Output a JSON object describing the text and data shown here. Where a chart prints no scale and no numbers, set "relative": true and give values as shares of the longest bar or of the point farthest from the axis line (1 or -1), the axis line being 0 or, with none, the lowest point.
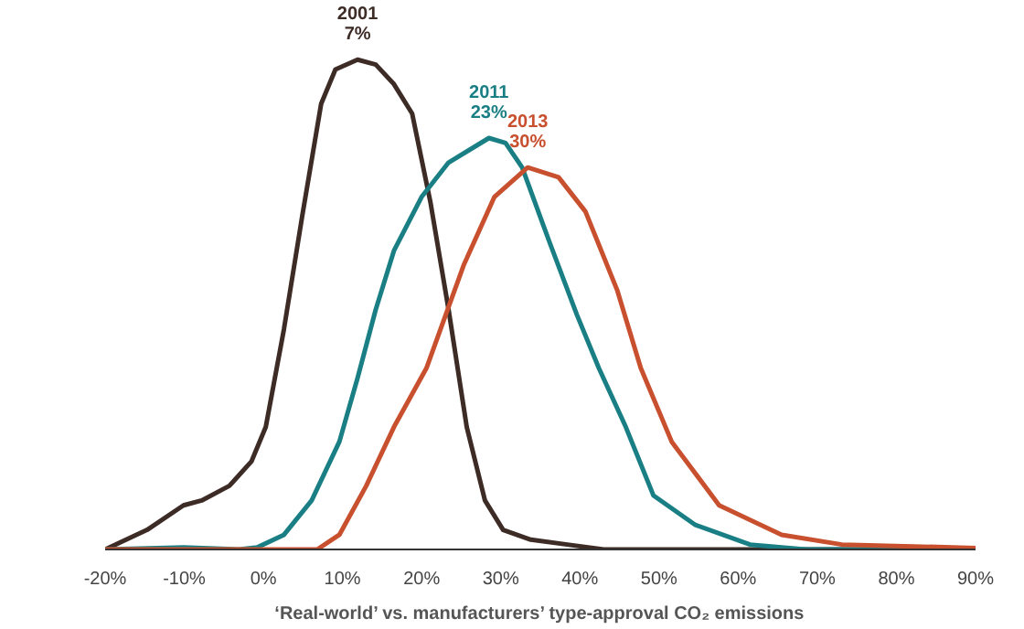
{
  "chart_data": {
    "type": "line",
    "relative": true,
    "xlabel": "‘Real-world’ vs. manufacturers’ type-approval CO₂ emissions",
    "xlim": [
      -20,
      90
    ],
    "xticks": [
      {
        "value": -20,
        "label": "-20%"
      },
      {
        "value": -10,
        "label": "-10%"
      },
      {
        "value": 0,
        "label": "0%"
      },
      {
        "value": 10,
        "label": "10%"
      },
      {
        "value": 20,
        "label": "20%"
      },
      {
        "value": 30,
        "label": "30%"
      },
      {
        "value": 40,
        "label": "40%"
      },
      {
        "value": 50,
        "label": "50%"
      },
      {
        "value": 60,
        "label": "60%"
      },
      {
        "value": 70,
        "label": "70%"
      },
      {
        "value": 80,
        "label": "80%"
      },
      {
        "value": 90,
        "label": "90%"
      }
    ],
    "tick_labels": "x",
    "grid": false,
    "marker": "none",
    "line_style": "solid",
    "series": [
      {
        "name": "2001",
        "color": "#3d2b26",
        "x": [
          -20,
          -14.7,
          -10.1,
          -7.8,
          -4.3,
          -1.5,
          0.3,
          2.6,
          4.9,
          7.3,
          9.1,
          11.9,
          14.2,
          16.5,
          18.8,
          21.1,
          23.4,
          25.7,
          28.0,
          30.3,
          33.8,
          38.4,
          43.0,
          90
        ],
        "values": [
          0,
          0.04,
          0.09,
          0.1,
          0.13,
          0.18,
          0.25,
          0.45,
          0.68,
          0.91,
          0.98,
          1,
          0.99,
          0.95,
          0.89,
          0.71,
          0.49,
          0.25,
          0.1,
          0.04,
          0.02,
          0.01,
          0,
          0
        ]
      },
      {
        "name": "2011",
        "color": "#1a7f84",
        "x": [
          -20,
          -10.1,
          -3.1,
          -0.8,
          2.6,
          6.1,
          9.6,
          11.9,
          14.2,
          16.5,
          20.0,
          23.4,
          28.5,
          30.6,
          32.7,
          36.1,
          39.6,
          42.4,
          45.8,
          49.3,
          54.6,
          61.5,
          68.5,
          90
        ],
        "values": [
          0,
          0.004,
          0,
          0.004,
          0.03,
          0.1,
          0.22,
          0.35,
          0.49,
          0.61,
          0.72,
          0.79,
          0.84,
          0.83,
          0.78,
          0.63,
          0.48,
          0.37,
          0.25,
          0.11,
          0.05,
          0.01,
          0,
          0
        ]
      },
      {
        "name": "2013",
        "color": "#c8502e",
        "x": [
          -20,
          6.8,
          9.6,
          13.0,
          16.5,
          20.6,
          25.3,
          29.2,
          33.4,
          37.3,
          40.7,
          44.7,
          47.7,
          51.6,
          57.6,
          65.5,
          73.1,
          90
        ],
        "values": [
          0,
          0,
          0.03,
          0.13,
          0.25,
          0.37,
          0.58,
          0.72,
          0.78,
          0.76,
          0.69,
          0.53,
          0.37,
          0.22,
          0.09,
          0.03,
          0.01,
          0.003
        ]
      }
    ],
    "annotations": [
      {
        "text": "7%",
        "x": 11.9,
        "y": 1
      },
      {
        "text": "23%",
        "x": 28.5,
        "y": 0.84
      },
      {
        "text": "30%",
        "x": 33.4,
        "y": 0.78
      }
    ]
  }
}
